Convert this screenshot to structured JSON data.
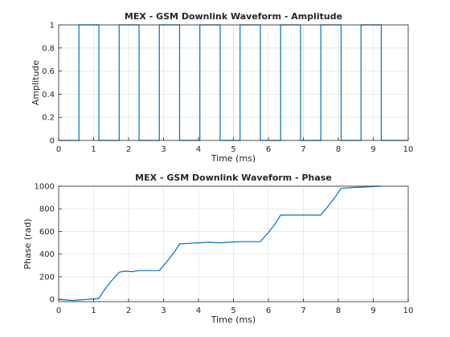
{
  "chart_data": [
    {
      "type": "line",
      "title": "MEX - GSM Downlink Waveform - Amplitude",
      "xlabel": "Time (ms)",
      "ylabel": "Amplitude",
      "xlim": [
        0,
        10
      ],
      "ylim": [
        0,
        1
      ],
      "xticks": [
        "0",
        "1",
        "2",
        "3",
        "4",
        "5",
        "6",
        "7",
        "8",
        "9",
        "10"
      ],
      "yticks": [
        "0",
        "0.2",
        "0.4",
        "0.6",
        "0.8",
        "1"
      ],
      "grid": true,
      "line_color": "#0072BD",
      "series": [
        {
          "x": [
            0,
            0.58,
            0.58,
            1.15,
            1.15,
            1.73,
            1.73,
            2.3,
            2.3,
            2.88,
            2.88,
            3.46,
            3.46,
            4.04,
            4.04,
            4.62,
            4.62,
            5.19,
            5.19,
            5.77,
            5.77,
            6.35,
            6.35,
            6.92,
            6.92,
            7.5,
            7.5,
            8.08,
            8.08,
            8.65,
            8.65,
            9.23,
            9.23,
            10
          ],
          "y": [
            0,
            0,
            1,
            1,
            0,
            0,
            1,
            1,
            0,
            0,
            1,
            1,
            0,
            0,
            1,
            1,
            0,
            0,
            1,
            1,
            0,
            0,
            1,
            1,
            0,
            0,
            1,
            1,
            0,
            0,
            1,
            1,
            0,
            0
          ]
        }
      ]
    },
    {
      "type": "line",
      "title": "MEX - GSM Downlink Waveform - Phase",
      "xlabel": "Time (ms)",
      "ylabel": "Phase (rad)",
      "xlim": [
        0,
        10
      ],
      "ylim": [
        -20,
        1000
      ],
      "xticks": [
        "0",
        "1",
        "2",
        "3",
        "4",
        "5",
        "6",
        "7",
        "8",
        "9",
        "10"
      ],
      "yticks": [
        "0",
        "200",
        "400",
        "600",
        "800",
        "1000"
      ],
      "grid": true,
      "line_color": "#0072BD",
      "series": [
        {
          "x": [
            0,
            0.2,
            0.4,
            0.6,
            0.8,
            1.0,
            1.15,
            1.3,
            1.5,
            1.73,
            1.9,
            2.1,
            2.3,
            2.5,
            2.7,
            2.88,
            3.1,
            3.3,
            3.46,
            3.7,
            4.0,
            4.3,
            4.6,
            4.9,
            5.2,
            5.5,
            5.77,
            6.0,
            6.2,
            6.35,
            6.6,
            6.9,
            7.2,
            7.5,
            7.7,
            7.9,
            8.08,
            8.3,
            8.5,
            8.65,
            8.9,
            9.1,
            9.23
          ],
          "y": [
            0,
            -5,
            -10,
            -5,
            0,
            5,
            10,
            80,
            160,
            240,
            250,
            245,
            255,
            255,
            255,
            255,
            335,
            415,
            490,
            495,
            500,
            505,
            500,
            505,
            510,
            510,
            510,
            590,
            670,
            745,
            745,
            745,
            745,
            745,
            820,
            900,
            980,
            985,
            990,
            990,
            995,
            998,
            1000
          ]
        }
      ]
    }
  ]
}
